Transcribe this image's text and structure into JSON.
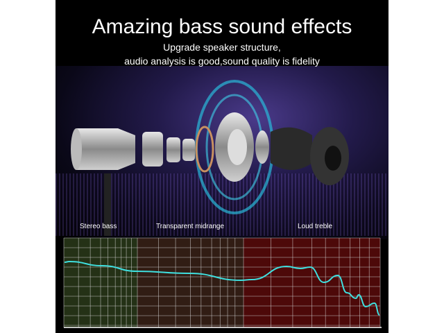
{
  "headline": "Amazing bass sound effects",
  "subtitle_line1": "Upgrade speaker structure,",
  "subtitle_line2": "audio analysis is good,sound quality is fidelity",
  "graph": {
    "bands": [
      {
        "label": "Stereo bass",
        "color": "#2a3a1a"
      },
      {
        "label": "Transparent midrange",
        "color": "#3a2218"
      },
      {
        "label": "Loud treble",
        "color": "#5a0a0a"
      }
    ],
    "curve_color": "#3fe0e0"
  },
  "colors": {
    "background": "#000000",
    "ring_glow": "#2ab8d8"
  }
}
